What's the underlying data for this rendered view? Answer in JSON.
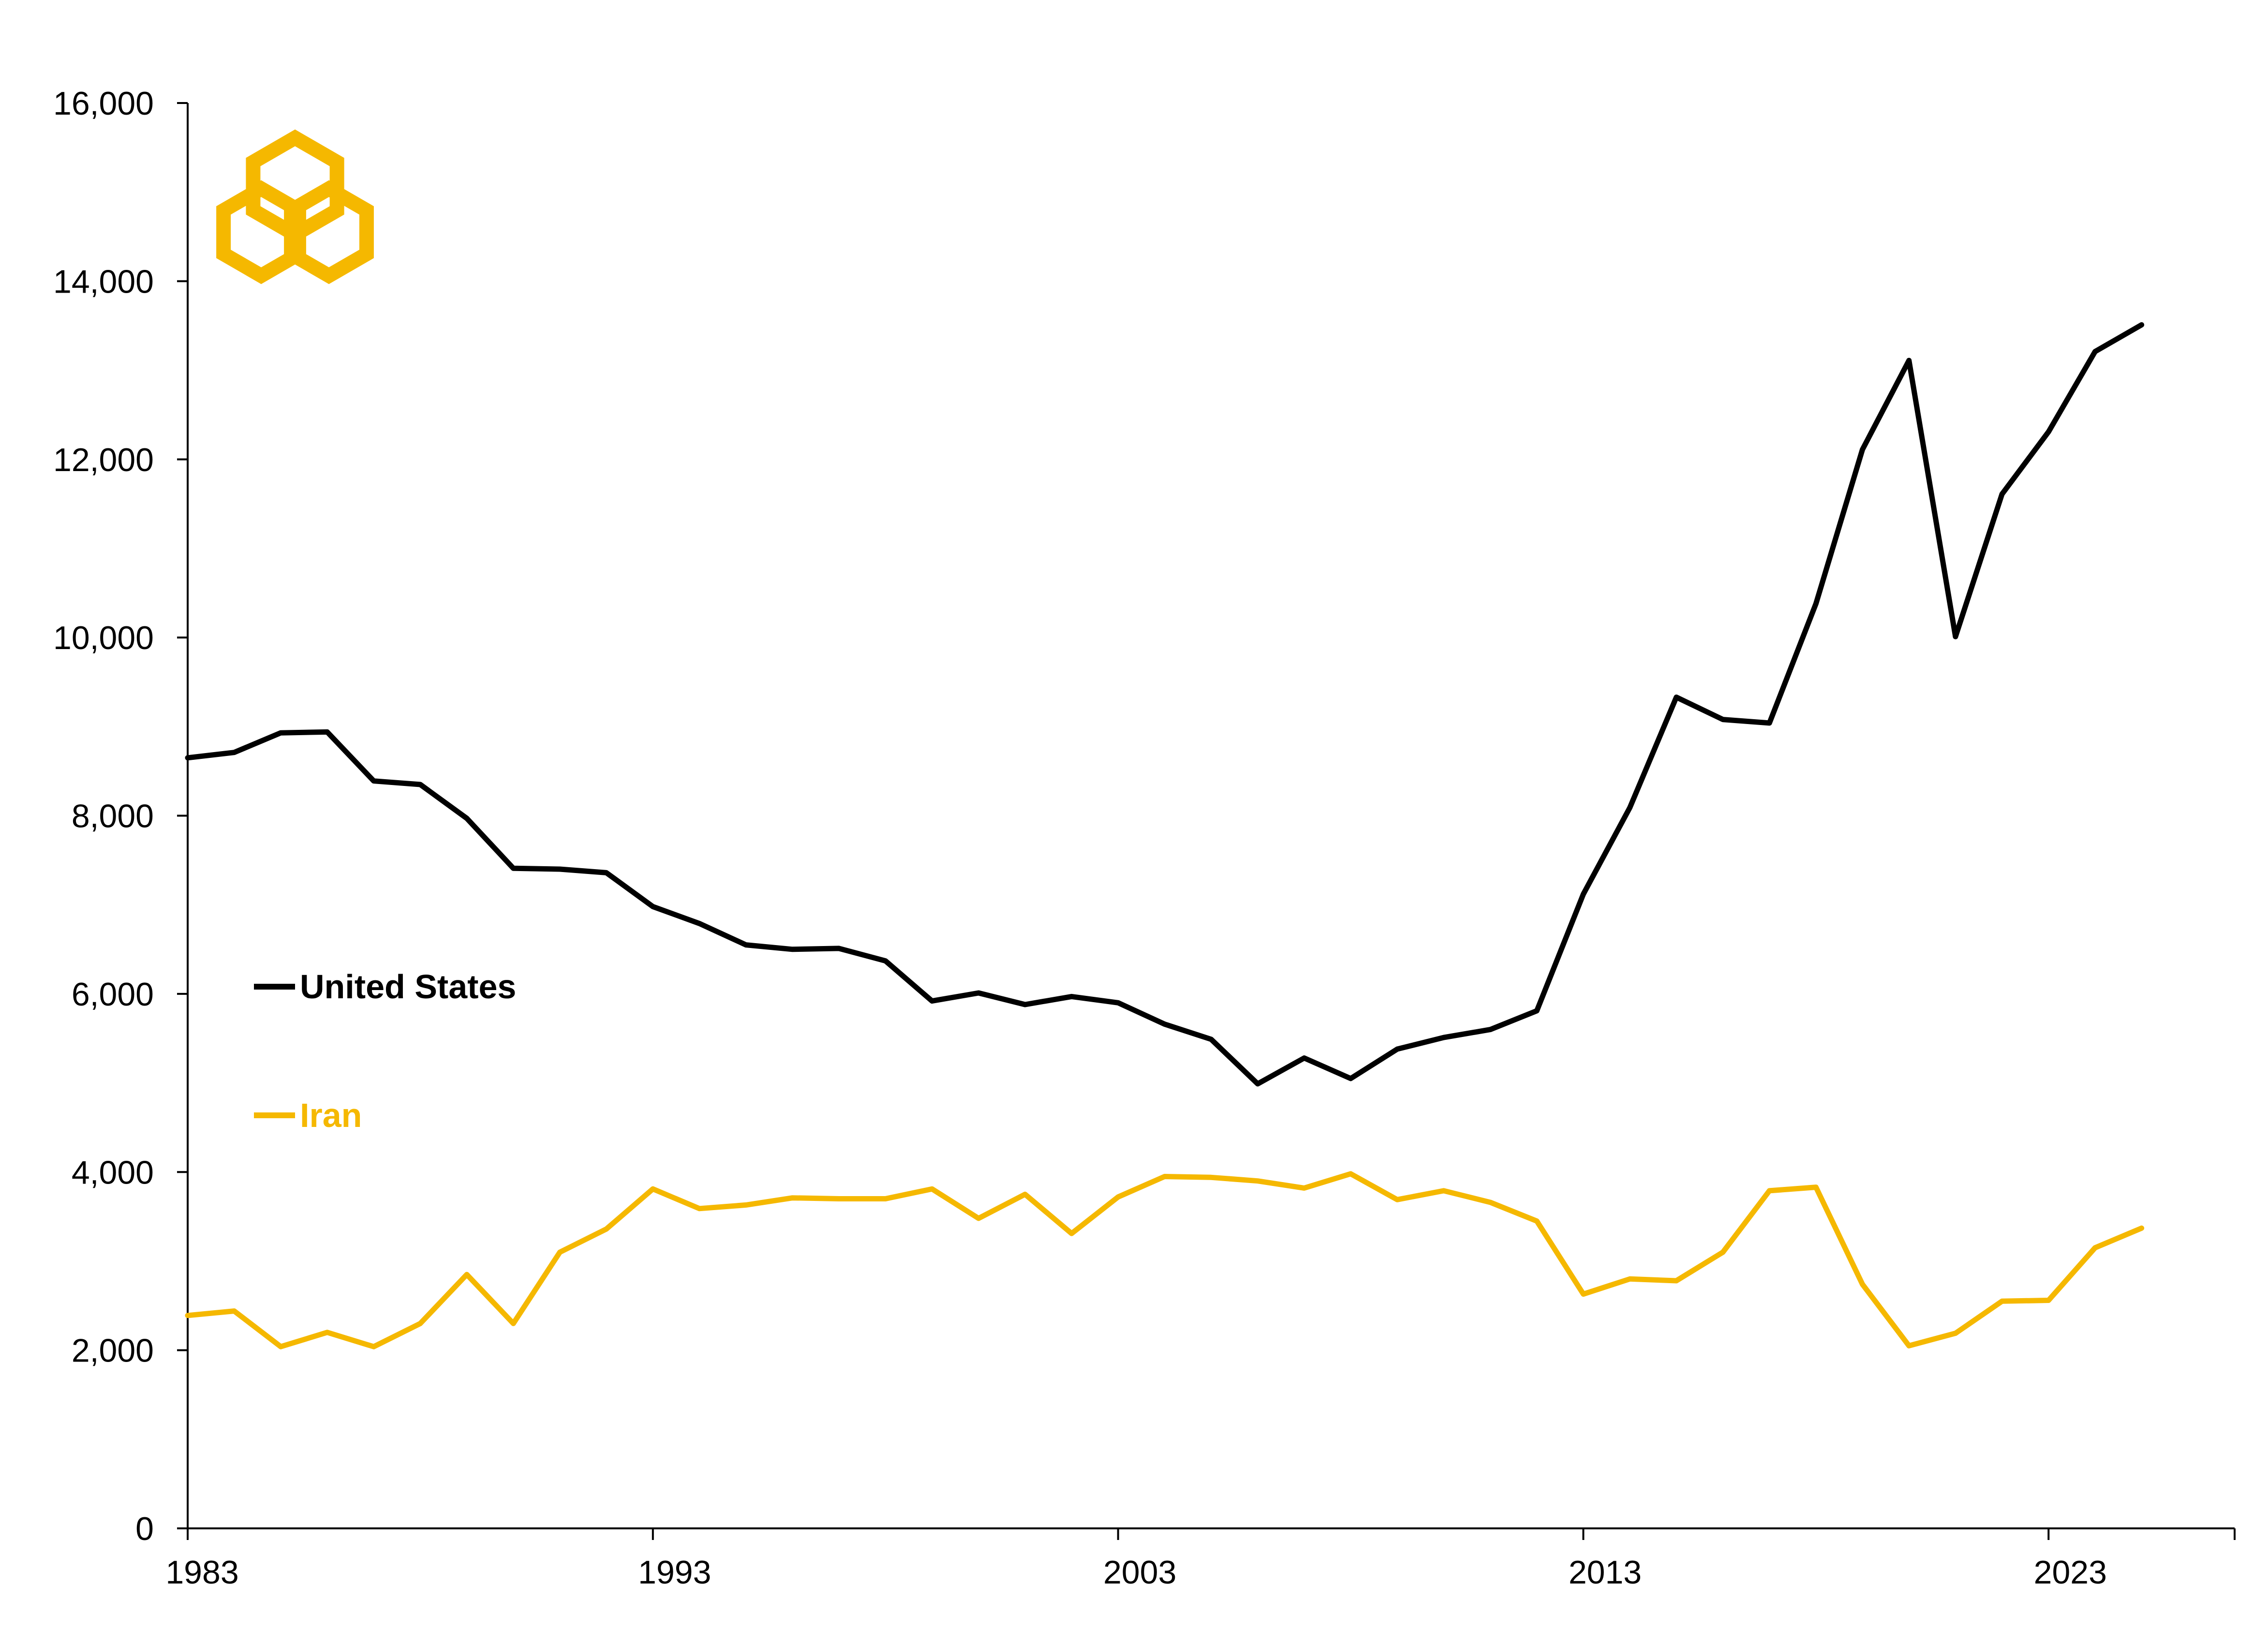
{
  "colors": {
    "axis": "#000000",
    "us": "#000000",
    "iran": "#F5B800",
    "logo": "#F5B800"
  },
  "logo": {
    "icon": "linked-hexagons-logo-icon"
  },
  "chart_data": {
    "type": "line",
    "title": "",
    "xlabel": "",
    "ylabel": "",
    "xlim": [
      1983,
      2027
    ],
    "ylim": [
      0,
      16000
    ],
    "x_ticks": [
      "1983",
      "1993",
      "2003",
      "2013",
      "2023"
    ],
    "y_ticks": [
      "0",
      "2,000",
      "4,000",
      "6,000",
      "8,000",
      "10,000",
      "12,000",
      "14,000",
      "16,000"
    ],
    "y_tick_values": [
      0,
      2000,
      4000,
      6000,
      8000,
      10000,
      12000,
      14000,
      16000
    ],
    "x_tick_values": [
      1983,
      1993,
      2003,
      2013,
      2023
    ],
    "grid": false,
    "legend_placement": "left",
    "x": [
      1983,
      1984,
      1985,
      1986,
      1987,
      1988,
      1989,
      1990,
      1991,
      1992,
      1993,
      1994,
      1995,
      1996,
      1997,
      1998,
      1999,
      2000,
      2001,
      2002,
      2003,
      2004,
      2005,
      2006,
      2007,
      2008,
      2009,
      2010,
      2011,
      2012,
      2013,
      2014,
      2015,
      2016,
      2017,
      2018,
      2019,
      2020,
      2021,
      2022,
      2023,
      2024,
      2025
    ],
    "series": [
      {
        "name": "United States",
        "color": "#000000",
        "values": [
          8650,
          8710,
          8930,
          8940,
          8390,
          8350,
          7970,
          7410,
          7400,
          7360,
          6980,
          6790,
          6550,
          6500,
          6510,
          6370,
          5920,
          6010,
          5880,
          5970,
          5900,
          5660,
          5490,
          4990,
          5280,
          5050,
          5380,
          5510,
          5600,
          5810,
          7120,
          8090,
          9330,
          9080,
          9040,
          10380,
          12110,
          13110,
          10010,
          11610,
          12310,
          13210,
          13510
        ]
      },
      {
        "name": "Iran",
        "color": "#F5B800",
        "values": [
          2390,
          2440,
          2040,
          2200,
          2040,
          2300,
          2850,
          2300,
          3100,
          3360,
          3810,
          3590,
          3630,
          3710,
          3700,
          3700,
          3810,
          3480,
          3750,
          3310,
          3720,
          3950,
          3940,
          3900,
          3820,
          3980,
          3690,
          3790,
          3660,
          3450,
          2630,
          2800,
          2780,
          3100,
          3790,
          3830,
          2740,
          2050,
          2190,
          2550,
          2560,
          3150,
          3370
        ]
      }
    ]
  },
  "legend": {
    "us_label": "United States",
    "iran_label": "Iran"
  }
}
